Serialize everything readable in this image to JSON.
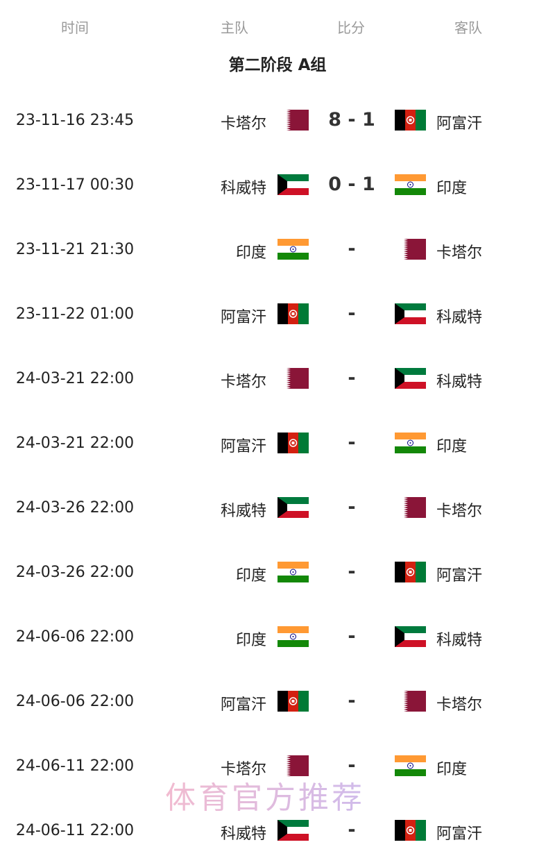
{
  "header": {
    "time": "时间",
    "home": "主队",
    "score": "比分",
    "away": "客队"
  },
  "group_title": "第二阶段 A组",
  "matches": [
    {
      "time": "23-11-16 23:45",
      "home": "卡塔尔",
      "home_flag": "qatar",
      "score": "8 - 1",
      "away": "阿富汗",
      "away_flag": "afghanistan"
    },
    {
      "time": "23-11-17 00:30",
      "home": "科威特",
      "home_flag": "kuwait",
      "score": "0 - 1",
      "away": "印度",
      "away_flag": "india"
    },
    {
      "time": "23-11-21 21:30",
      "home": "印度",
      "home_flag": "india",
      "score": "-",
      "away": "卡塔尔",
      "away_flag": "qatar"
    },
    {
      "time": "23-11-22 01:00",
      "home": "阿富汗",
      "home_flag": "afghanistan",
      "score": "-",
      "away": "科威特",
      "away_flag": "kuwait"
    },
    {
      "time": "24-03-21 22:00",
      "home": "卡塔尔",
      "home_flag": "qatar",
      "score": "-",
      "away": "科威特",
      "away_flag": "kuwait"
    },
    {
      "time": "24-03-21 22:00",
      "home": "阿富汗",
      "home_flag": "afghanistan",
      "score": "-",
      "away": "印度",
      "away_flag": "india"
    },
    {
      "time": "24-03-26 22:00",
      "home": "科威特",
      "home_flag": "kuwait",
      "score": "-",
      "away": "卡塔尔",
      "away_flag": "qatar"
    },
    {
      "time": "24-03-26 22:00",
      "home": "印度",
      "home_flag": "india",
      "score": "-",
      "away": "阿富汗",
      "away_flag": "afghanistan"
    },
    {
      "time": "24-06-06 22:00",
      "home": "印度",
      "home_flag": "india",
      "score": "-",
      "away": "科威特",
      "away_flag": "kuwait"
    },
    {
      "time": "24-06-06 22:00",
      "home": "阿富汗",
      "home_flag": "afghanistan",
      "score": "-",
      "away": "卡塔尔",
      "away_flag": "qatar"
    },
    {
      "time": "24-06-11 22:00",
      "home": "卡塔尔",
      "home_flag": "qatar",
      "score": "-",
      "away": "印度",
      "away_flag": "india"
    },
    {
      "time": "24-06-11 22:00",
      "home": "科威特",
      "home_flag": "kuwait",
      "score": "-",
      "away": "阿富汗",
      "away_flag": "afghanistan"
    }
  ],
  "watermark": "体育官方推荐"
}
